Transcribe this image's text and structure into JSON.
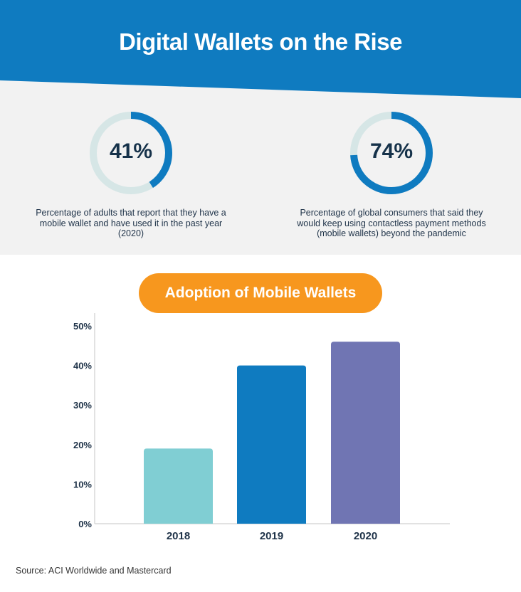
{
  "header": {
    "title": "Digital Wallets on the Rise"
  },
  "stats": [
    {
      "value": "41%",
      "fraction": 0.41,
      "description": "Percentage of adults that report that they have a mobile wallet and have used it in the past year (2020)"
    },
    {
      "value": "74%",
      "fraction": 0.74,
      "description": "Percentage of global consumers that said they would keep using contactless payment methods (mobile wallets) beyond the pandemic"
    }
  ],
  "colors": {
    "brand_blue": "#0f7bc0",
    "ring_track": "#d6e6e6",
    "orange": "#f7971e",
    "light_gray": "#f2f2f2"
  },
  "chart_data": {
    "type": "bar",
    "title": "Adoption of Mobile Wallets",
    "categories": [
      "2018",
      "2019",
      "2020"
    ],
    "values": [
      19,
      40,
      46
    ],
    "colors": [
      "#80ced3",
      "#0f7bc0",
      "#7075b3"
    ],
    "ylim": [
      0,
      50
    ],
    "yticks": [
      "0%",
      "10%",
      "20%",
      "30%",
      "40%",
      "50%"
    ],
    "grid": false
  },
  "footer": {
    "source": "Source: ACI Worldwide and Mastercard"
  }
}
